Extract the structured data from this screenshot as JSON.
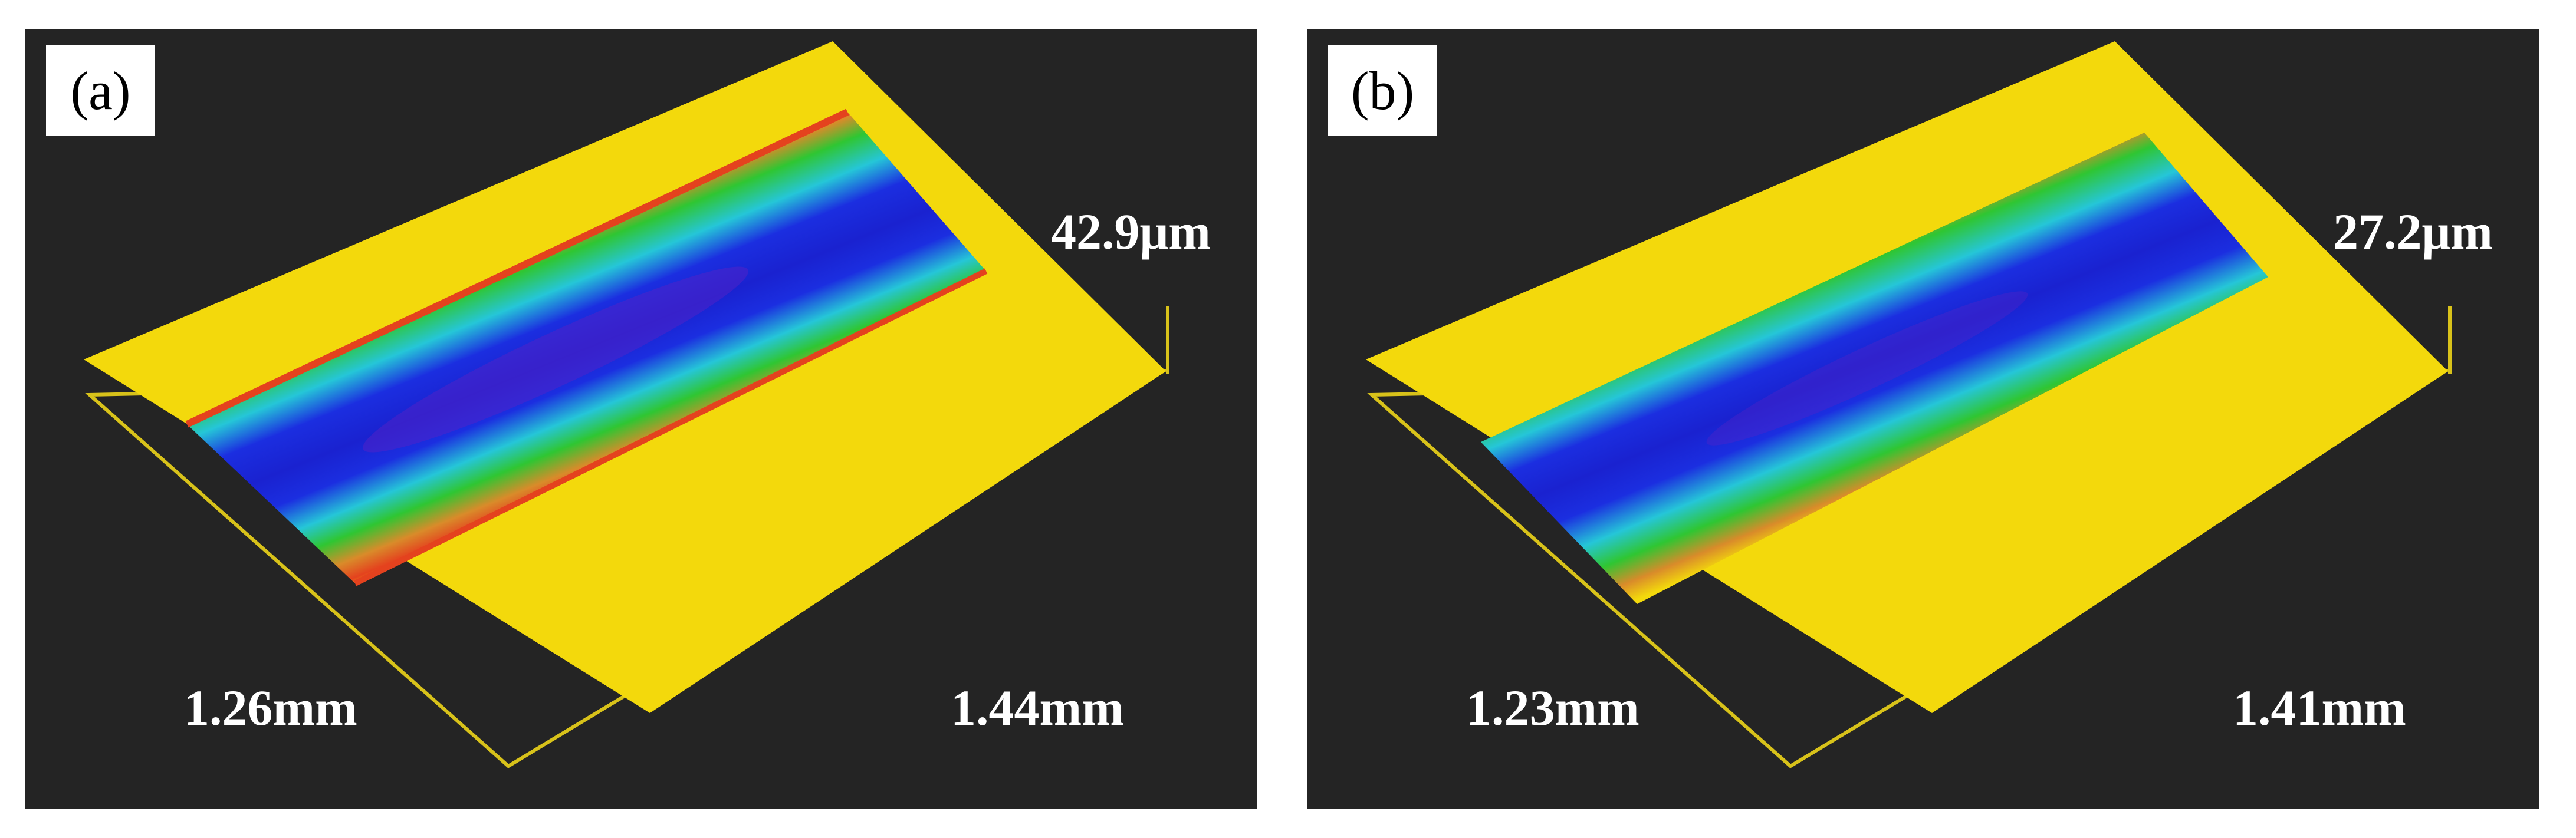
{
  "panels": [
    {
      "label": "(a)",
      "depth": "42.9μm",
      "dim_left": "1.26mm",
      "dim_right": "1.44mm"
    },
    {
      "label": "(b)",
      "depth": "27.2μm",
      "dim_left": "1.23mm",
      "dim_right": "1.41mm"
    }
  ],
  "colors": {
    "background": "#242424",
    "surface": "#f3d90c",
    "edge": "#e4421e",
    "green": "#2fc632",
    "cyan": "#25c6d8",
    "blue": "#1b2ee0",
    "violet": "#5c22c6",
    "frame": "#d8c21a"
  }
}
